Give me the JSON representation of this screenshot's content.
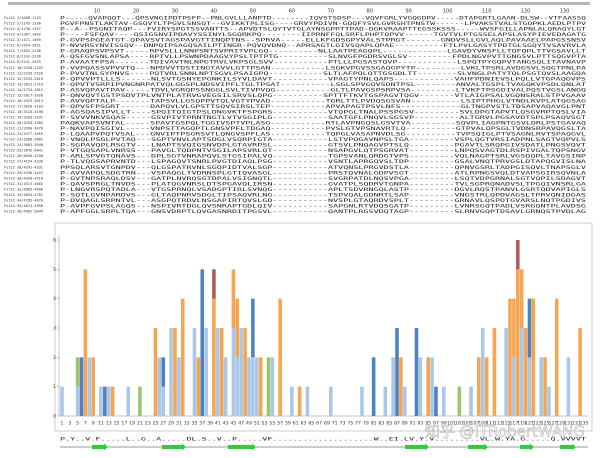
{
  "alignment": {
    "ruler": [
      10,
      20,
      30,
      40,
      50,
      60,
      70,
      80,
      90,
      100,
      110,
      120,
      130
    ],
    "rows": [
      {
        "name": "Fst22-1/1058-1143",
        "seq": "P-----QVAPQQT---QPSVNGIPDTPSFP--PNLGVLLLANPTD--------IQVSTSDSP---VQVFGRLYVGQGDPV-----DTAPGRTLGAAN-DLSW--VTFAASSQ"
      },
      {
        "name": "Fst22-2/1145-1236",
        "seq": "PGVFPNSTLAKTAV-GSQVYLTPGVLSNSQT--GVIKKTPLISG----GRVYPDIVN-GQQFYSVLGVRSHTPNSTW------LPVAKSTVALSTGQPKLAEDLPTPV"
      },
      {
        "name": "Fst22-3/1238-1357",
        "seq": "P--A--PSGNITAQP---FVIRYSPGTSSVANTTS--APVDTSLQYTVTGLAYNSGPPTTPAD-DGKVRAAPTTEGSSKSSS-----WVSFGILLAPNLALQRAQYLGT"
      },
      {
        "name": "Fst22-4/1367-1462",
        "seq": "P----FSFQAV----QSIGSNVIPDAVYSSINYLSGQRKPQ--------IIPRNFFQLSRFLPHPTQPVV------TGVTVLPTGSSELAPSLASYPIEVEDAGATG"
      },
      {
        "name": "Fst22-5/1471-1569",
        "seq": "P-GVPSPGEATGT-QPAVSVTAGSPAVGTTINQPTNS--SPRVA-----ELLKFGDSGPYVALSTPRGT-------GNDVSLLGVLAQLPAVAAELPAPGSSNSV"
      },
      {
        "name": "Fst22-6/1954-2051",
        "seq": "P-NVVRSYNVISSQV--DNPQIPSAGQSAILPTINGR-PQVQVDNQ--APRSAGTLGIVSQAPLQPAE----------FTLPVLGASYTPDTGLSGQYTVSAVRVLA"
      },
      {
        "name": "Fst22-7/2052-2138",
        "seq": "P-GRAQPSVPSVT-----RPVSLLLNNPSNTSVPRITVPLGQ----------NLLAATPEAGQPL-------------LGAVDYVNSFLLTQFQPLTTVGSAVLLT"
      },
      {
        "name": "Fst22-8/2142-2236",
        "seq": "A-QSFGVSNLAPSA----RPTVLLPSWNPDAAGVYPSLTPTPTG----------SLNVGFPGDRSVGLSV---------FPDLNGVPVTTGNGSVLPTTSQGVPTA"
      },
      {
        "name": "Fst22-9/2241-2325",
        "seq": "P-AVAATFPSA-------TDIVAVTNLNPGTRVLVKPSGLSVV-----------PTLLLPGSASTQVP------------LSPQTPYGQPVTANGSQLITAVNAVP"
      },
      {
        "name": "Fst22-10/2328-2432",
        "seq": "P-VVPQASSVPVVTQ---NPDVVTDSTINGTAVVLGTTPSAN-----------LSGKVPGVSSGAQGPYTP---------LVKLTPSRLAVDGSVLSQGTPNLPA"
      },
      {
        "name": "Fst22-11/2435-2529",
        "seq": "P-PVVTNLSYPNVS----PQTVRLSNNLNPTSGVLPSAIGPQ-----------SLTLAFPQLQTTGSGDLTT--------SLVNGLPATYTQLPSGTQVSLAAGQA"
      },
      {
        "name": "Fst22-12/2533-2619",
        "seq": "P-QPVVPTLLLS------NLSVTGSNYEPGNKILSYVLDAVT-----------VPAGTYPNLQAPS------------VAHFPDNIEVSLPQLLVTGPAQGVPS"
      },
      {
        "name": "Fst22-13/2621-2719",
        "seq": "P-QPVTVSRPIPVNGNRPATVQLGGSPLNDSVIPFLTGLTPSAT----------LSGLSPVGQVSDNTPSL--------ANVALTGSPLTVAGQKVPSDLQNLAT"
      },
      {
        "name": "Fst22-14/2724-2812",
        "seq": "P-ASVQPAVTPAV-----TDVLVGRQPSSNGGLSVLTIVPVQG-----------GLTLPAVGSPSRPVSA---------LTVKFTPSGDIVALPQSTVGSLANGQ"
      },
      {
        "name": "Fst22-15/2817-2920",
        "seq": "P-QNVQVTGSTPSDVTPLVNTPLATRVGVEGSILSRVSLQPG----------SPTTFTKVTGSPAGVTQGV-------VTLAIGPSALVGQNSRALSTPVGAAV"
      },
      {
        "name": "Fst22-16/2925-3013",
        "seq": "P-AVVQPTALP-------TAPSVLLGSQPPVTQLVGTYPVAD-----------TGRLTTLPVDQSGSVAN----------LSIPTPHGLVTNDLKVPLATQGSAG"
      },
      {
        "name": "Fst22-17/3020-3103",
        "seq": "P-QPVSFPSGRT------DAPQVLVLGPSTTSQVSIRSLTEP-----------APVAPAGTPSVLNFS------------GLTNGPVSTLTDSAPVAQAVGLPNT"
      },
      {
        "name": "Fst22-18/3110-3198",
        "seq": "P-AGSQASIPVLLT----SPQITQIGTPSLDNGVKTFSPGRS-----------VTQPGLTNALPSSPGSV---------SVLDPGTAPVTLQSGVRPTQSLVIA"
      },
      {
        "name": "Fst22-19/3203-3291",
        "seq": "P-SVVVNKVSQAS-----GSVPIVTPRNTNGTLVTVSGIPLG-----------SAATGFLPNQVLSGSVP---------ALTGRVLPGSAVDTSPLPSAQVSGT"
      },
      {
        "name": "Fst22-20/3294-3385",
        "seq": "PAQKVAPSVNTAL-----SPAVTGSPQLTGGIVSPTVPLASG-----------RTLAVPNGQSLGSVTVA---------SQVPLIAGPNTGSVLDRLPSTGAVAQ"
      },
      {
        "name": "Fst22-21/3390-3476",
        "seq": "P-NAVPQISGIVL-----VNPSTTAGQPTLGNSVPFLTDGAQ-----------PVSLGTVPSNAVRTLQ----------GTPVALQPSGLTVDNSRPAVQGSLTA"
      },
      {
        "name": "Fst22-22/3477-3563",
        "seq": "P-LQAAPVPQTVSAL---GNVIPTPSGRSVTLQNGVSPFLAS-----------TQPGLVASAPNVDLSG----------TVPSQIGLPTVSAGNLRVTSPAQGVL"
      },
      {
        "name": "Fst22-23/3568-3662",
        "seq": "P-VNQLPSGLPVTAQ---SGPTVNVLAPTSDGLVSQRPIGTA-----------LSTVPQGAVNPSLTGA---------VSPLQGTVRSIADPNLSAGTVQPVLS"
      },
      {
        "name": "Fst22-24/3663-3940",
        "seq": "P-SGPAVQPLRSGTV---LNAPTSVQIGSNVDPLGTAVRPSL-----------GTSVLPNQAGVPTSLQ---------PGAVTLSRQPGIVSDATLPNGSVQVT"
      },
      {
        "name": "Fst22-25/3945-4041",
        "seq": "P-VTGQSAPLVNRSS---PAVGLTQDPNTVSGILAPSVRLQT-----------NSAPGVLQTPSGRVAT---------LNPQSVAGTDLRSPIVGALTQPSNGV"
      },
      {
        "name": "Fst22-26/4046-4150",
        "seq": "P-ARLSPVGTQNAVS---DPLSGTVNRAPQVLSTGSIPALVQ-----------TGPSVANLQRDGTVPS---------VQLNAGPTSRLVGSDQPLTAVGSINP"
      },
      {
        "name": "Fst22-27/4154-4236",
        "seq": "P-TLVQGSAPRVNTD---LSPAGQVTSNRLPVGTDIAQLPSG-----------VSNTLAPRGQVSLTDP---------GSALVNQTPRVGSLDTAPQGVISLNA"
      },
      {
        "name": "Fst22-28/4241-4331",
        "seq": "PPSQLARSVTGNPDV---QLGSPATRVNLSGQPIDTVALSGP-----------ATVQNSLPRGVDSTLA---------QPNVGSRLTADPGISQVLTNAPSGLV"
      },
      {
        "name": "Fst22-29/4336-4422",
        "seq": "P-AVVAPQLSDGTRN---VSPAQGLTVDRNSPLGTIQVASGL-----------PRSTQVNALGDPVSGT---------ATLRPNGSVQLDTVAPSGIRSQVNLA"
      },
      {
        "name": "Fst22-30/4428-4510",
        "seq": "P-GVTNPSRAQLDSV---GATPLNVRQSGTDPALVSIGNQTL-----------SVGRPATDLNQSVPGA---------LSQTVDPGRNALSGTVQPILSDAGVT"
      },
      {
        "name": "Fst22-31/4513-4602",
        "seq": "P-QAVSPRGLTNVDS---PLATQGVNRSLDTSPGAVQLIRSN-----------GVATPLSQDRVTGNPA---------TVLSGPRQNADVSLTPGQIVNSRLGA"
      },
      {
        "name": "Fst22-32/4605-4690",
        "seq": "P-LNGVRSPQTADLA---VTGSPRNQLVSADGPTIRLSVNQG-----------APLTSDVRNGQLASTP---------DGVLRQSTPANVLGSRTQDVAPIGLS"
      },
      {
        "name": "Fst22-33/4694-4781",
        "seq": "P-SQTLGVNPARDVS---GLTAQPNRVSDGLTIPSAQVRLNG-----------TSPVQALGDNRTLSAP---------VNGSTRLQPDVAGSLTPRVQNIDGAS"
      },
      {
        "name": "Fst22-34/4785-4870",
        "seq": "P-DVQAGLSRPNTVL---ASGPQTRDVLNSGAPIRTQVSLGD-----------NVSPLGTAQRDVSPLT---------GRNAVLQSPDTGVARSLNQTPGDIVS"
      },
      {
        "name": "Fst22-35/4874-4958",
        "seq": "P-AVPFGVPSLAGQS---NSPIVRTDGLQVSNRAPTGDLQIV-----------SAPGNLRTVDQSGATP---------LVNRSGQTPADLVSRGQNTPLAVDSG"
      },
      {
        "name": "Fst22-36/4962-5049",
        "seq": "P-APFGGLSRPLTQA---GNSVDRPTLQVGASNRDITPGSVL-----------QANTPLRGSVDQTAGP---------SLRNVGQPTDSAVLGRNQSTPVDLAG"
      }
    ]
  },
  "consensus": "P.Y..V.F.....L..G..A.....DL.S..V..P.....VF....................W..EI.LV.Y.V.........VL.W.YA.G.....Q.VVVVT",
  "chart_data": {
    "type": "bar",
    "stacked": true,
    "categories": [
      1,
      null,
      3,
      null,
      5,
      null,
      7,
      null,
      9,
      null,
      11,
      null,
      13,
      null,
      15,
      null,
      17,
      null,
      19,
      null,
      21,
      null,
      23,
      null,
      25,
      null,
      27,
      null,
      29,
      null,
      31,
      null,
      33,
      null,
      35,
      null,
      37,
      null,
      39,
      null,
      41,
      null,
      43,
      null,
      45,
      null,
      47,
      null,
      49,
      null,
      51,
      null,
      53,
      null,
      55,
      null,
      57,
      null,
      59,
      null,
      61,
      null,
      63,
      null,
      65,
      null,
      67,
      null,
      69,
      null,
      71,
      null,
      73,
      null,
      75,
      null,
      77,
      null,
      79,
      null,
      81,
      null,
      83,
      null,
      85,
      null,
      87,
      null,
      89,
      null,
      91,
      null,
      93,
      null,
      95,
      null,
      97,
      null,
      99,
      null,
      101,
      null,
      103,
      null,
      105,
      null,
      107,
      null,
      109,
      null,
      111,
      null,
      113,
      null,
      115,
      null,
      117,
      null,
      119,
      null,
      121,
      null,
      123,
      null,
      125,
      null,
      127,
      null,
      129,
      null,
      131,
      null,
      133,
      null,
      135
    ],
    "series": [
      {
        "color": "#a9c8e8",
        "values": [
          1,
          0,
          0,
          0,
          1,
          0,
          0,
          2,
          0,
          0,
          1,
          0,
          1,
          0,
          0,
          0,
          0,
          1,
          0,
          0,
          0,
          0,
          0,
          0,
          0,
          2,
          1,
          0,
          3,
          0,
          2,
          0,
          0,
          0,
          3,
          0,
          0,
          3,
          0,
          0,
          3,
          0,
          2,
          0,
          3,
          2,
          3,
          0,
          2,
          2,
          2,
          0,
          0,
          0,
          2,
          0,
          0,
          0,
          0,
          1,
          0,
          0,
          0,
          1,
          0,
          0,
          0,
          0,
          0,
          1,
          0,
          0,
          0,
          0,
          0,
          0,
          0,
          1,
          0,
          0,
          0,
          0,
          0,
          1,
          0,
          2,
          0,
          0,
          1,
          0,
          0,
          0,
          2,
          0,
          0,
          2,
          0,
          0,
          1,
          0,
          0,
          0,
          0,
          0,
          0,
          1,
          0,
          0,
          3,
          0,
          0,
          0,
          0,
          0,
          3,
          0,
          2,
          0,
          3,
          0,
          2,
          0,
          0,
          2,
          0,
          1,
          0,
          0,
          0,
          0,
          2,
          0,
          0,
          0,
          0
        ]
      },
      {
        "color": "#4f81bd",
        "values": [
          0,
          0,
          0,
          0,
          0,
          2,
          0,
          0,
          0,
          0,
          0,
          1,
          0,
          0,
          0,
          0,
          0,
          0,
          0,
          0,
          0,
          0,
          0,
          0,
          0,
          0,
          1,
          0,
          0,
          0,
          0,
          0,
          0,
          0,
          0,
          0,
          5,
          0,
          0,
          0,
          0,
          0,
          0,
          0,
          0,
          0,
          0,
          0,
          0,
          2,
          0,
          0,
          0,
          0,
          0,
          0,
          0,
          0,
          0,
          0,
          0,
          0,
          0,
          0,
          0,
          0,
          0,
          0,
          0,
          0,
          0,
          0,
          0,
          0,
          0,
          0,
          0,
          0,
          0,
          0,
          2,
          0,
          0,
          0,
          0,
          0,
          3,
          0,
          0,
          0,
          0,
          3,
          0,
          0,
          0,
          0,
          1,
          0,
          0,
          0,
          0,
          0,
          0,
          0,
          0,
          0,
          0,
          0,
          0,
          0,
          0,
          0,
          0,
          0,
          0,
          0,
          0,
          0,
          0,
          0,
          2,
          0,
          0,
          0,
          0,
          0,
          0,
          0,
          0,
          0,
          0,
          0,
          0,
          0,
          0
        ]
      },
      {
        "color": "#9cc46c",
        "values": [
          0,
          0,
          0,
          0,
          1,
          0,
          0,
          0,
          0,
          0,
          0,
          0,
          0,
          0,
          0,
          0,
          0,
          0,
          0,
          0,
          1,
          0,
          0,
          0,
          0,
          0,
          0,
          0,
          0,
          0,
          0,
          0,
          0,
          0,
          0,
          0,
          0,
          0,
          0,
          0,
          0,
          0,
          0,
          0,
          0,
          0,
          0,
          0,
          0,
          0,
          0,
          0,
          0,
          2,
          0,
          0,
          0,
          0,
          0,
          0,
          0,
          0,
          0,
          0,
          0,
          0,
          0,
          0,
          0,
          0,
          0,
          0,
          0,
          0,
          0,
          0,
          0,
          0,
          0,
          0,
          0,
          0,
          0,
          0,
          0,
          0,
          0,
          0,
          0,
          0,
          0,
          0,
          0,
          0,
          0,
          0,
          0,
          0,
          0,
          0,
          0,
          0,
          1,
          0,
          0,
          0,
          0,
          0,
          0,
          0,
          0,
          0,
          0,
          0,
          0,
          0,
          0,
          0,
          0,
          0,
          0,
          0,
          0,
          0,
          0,
          0,
          0,
          0,
          0,
          0,
          0,
          0,
          0,
          0,
          0
        ]
      },
      {
        "color": "#f4a653",
        "values": [
          0,
          0,
          0,
          0,
          0,
          0,
          5,
          0,
          2,
          0,
          0,
          0,
          0,
          1,
          0,
          0,
          0,
          0,
          0,
          0,
          0,
          0,
          0,
          0,
          3,
          0,
          0,
          0,
          0,
          3,
          0,
          4,
          0,
          0,
          0,
          2,
          0,
          0,
          0,
          4,
          0,
          3,
          0,
          0,
          2,
          2,
          0,
          3,
          0,
          0,
          0,
          2,
          0,
          0,
          0,
          0,
          4,
          0,
          0,
          0,
          0,
          1,
          0,
          0,
          0,
          0,
          0,
          0,
          0,
          0,
          0,
          0,
          0,
          0,
          0,
          0,
          0,
          0,
          0,
          0,
          0,
          0,
          0,
          0,
          0,
          0,
          0,
          2,
          0,
          0,
          0,
          0,
          0,
          0,
          2,
          0,
          0,
          0,
          0,
          0,
          0,
          0,
          0,
          0,
          0,
          0,
          0,
          2,
          0,
          2,
          0,
          3,
          0,
          0,
          0,
          4,
          2,
          5,
          2,
          3,
          0,
          4,
          0,
          0,
          2,
          0,
          0,
          4,
          0,
          0,
          0,
          0,
          0,
          3,
          0
        ]
      },
      {
        "color": "#b45a5a",
        "values": [
          0,
          0,
          0,
          0,
          0,
          0,
          0,
          0,
          0,
          0,
          0,
          0,
          0,
          0,
          0,
          0,
          0,
          0,
          0,
          0,
          0,
          0,
          0,
          0,
          0,
          0,
          0,
          0,
          0,
          0,
          0,
          0,
          0,
          0,
          0,
          0,
          0,
          0,
          0,
          1,
          0,
          0,
          0,
          0,
          0,
          0,
          0,
          0,
          0,
          0,
          0,
          0,
          0,
          0,
          0,
          0,
          0,
          0,
          0,
          0,
          0,
          0,
          0,
          0,
          0,
          0,
          0,
          0,
          0,
          0,
          0,
          0,
          0,
          0,
          0,
          0,
          0,
          0,
          0,
          0,
          0,
          0,
          0,
          0,
          0,
          0,
          0,
          0,
          0,
          0,
          0,
          0,
          0,
          0,
          0,
          0,
          0,
          0,
          0,
          0,
          0,
          0,
          0,
          0,
          0,
          0,
          0,
          0,
          0,
          0,
          0,
          0,
          0,
          0,
          0,
          0,
          0,
          1,
          0,
          0,
          0,
          0,
          0,
          0,
          0,
          0,
          0,
          0,
          0,
          0,
          0,
          0,
          0,
          0,
          0
        ]
      }
    ],
    "ylim": [
      0,
      6
    ],
    "yticks": [
      0,
      1,
      2,
      3,
      4,
      5,
      6
    ]
  },
  "watermark": "知乎 @ITRobertWANG"
}
